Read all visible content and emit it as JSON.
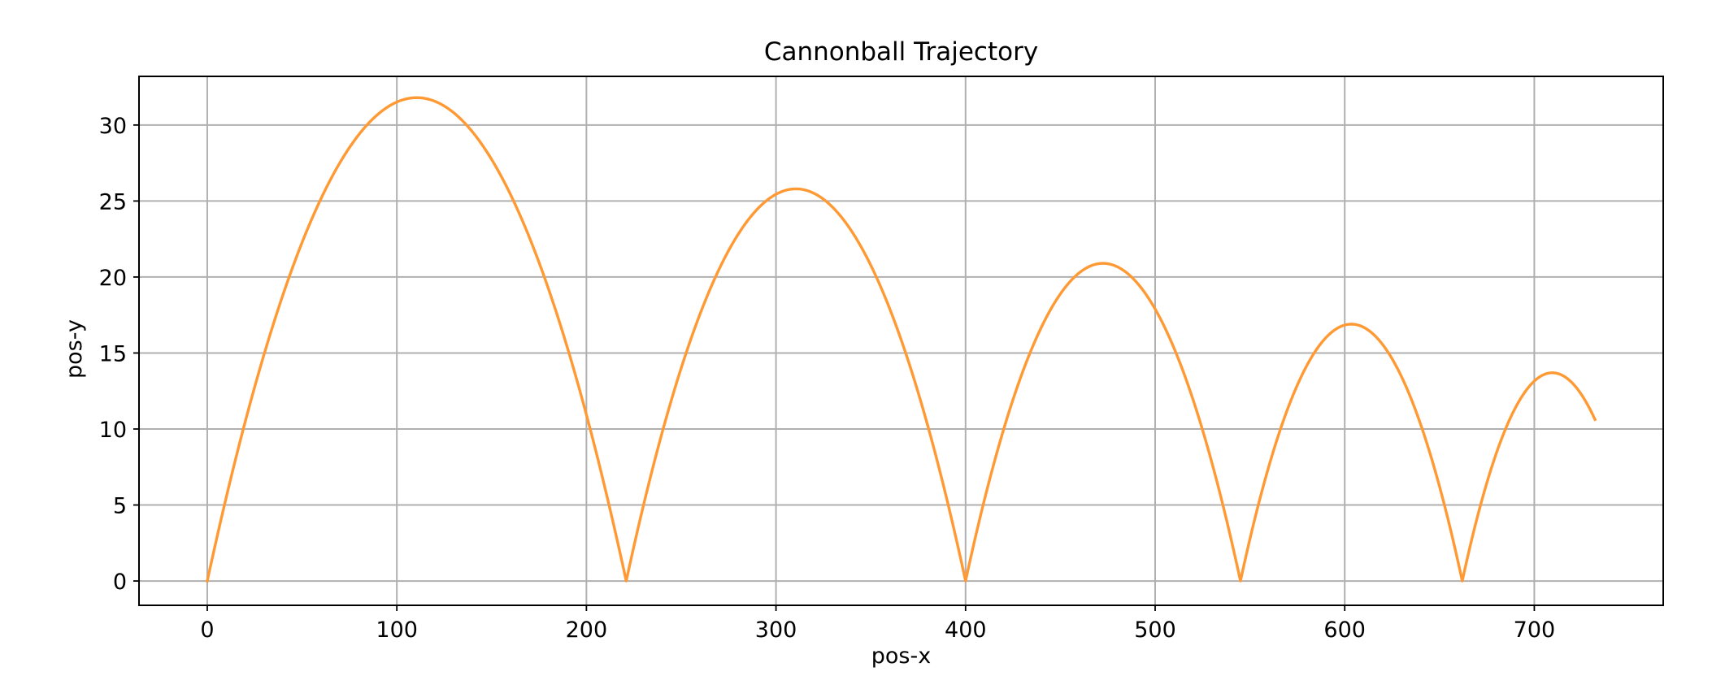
{
  "chart_data": {
    "type": "line",
    "title": "Cannonball Trajectory",
    "xlabel": "pos-x",
    "ylabel": "pos-y",
    "xlim": [
      -36,
      768
    ],
    "ylim": [
      -1.6,
      33.2
    ],
    "xticks": [
      0,
      100,
      200,
      300,
      400,
      500,
      600,
      700
    ],
    "xtick_labels": [
      "0",
      "100",
      "200",
      "300",
      "400",
      "500",
      "600",
      "700"
    ],
    "yticks": [
      0,
      5,
      10,
      15,
      20,
      25,
      30
    ],
    "ytick_labels": [
      "0",
      "5",
      "10",
      "15",
      "20",
      "25",
      "30"
    ],
    "grid": true,
    "legend": false,
    "series": [
      {
        "color": "#ff9933",
        "arcs": [
          {
            "x_start": 0,
            "x_end": 221,
            "peak_x": 110.5,
            "peak_y": 31.8
          },
          {
            "x_start": 221,
            "x_end": 400,
            "peak_x": 310.5,
            "peak_y": 25.8
          },
          {
            "x_start": 400,
            "x_end": 545,
            "peak_x": 472.5,
            "peak_y": 20.9
          },
          {
            "x_start": 545,
            "x_end": 662,
            "peak_x": 603.5,
            "peak_y": 16.9
          },
          {
            "x_start": 662,
            "x_end": 757,
            "peak_x": 709.5,
            "peak_y": 13.7
          }
        ],
        "x_last": 732,
        "y_last": 10.6
      }
    ]
  }
}
